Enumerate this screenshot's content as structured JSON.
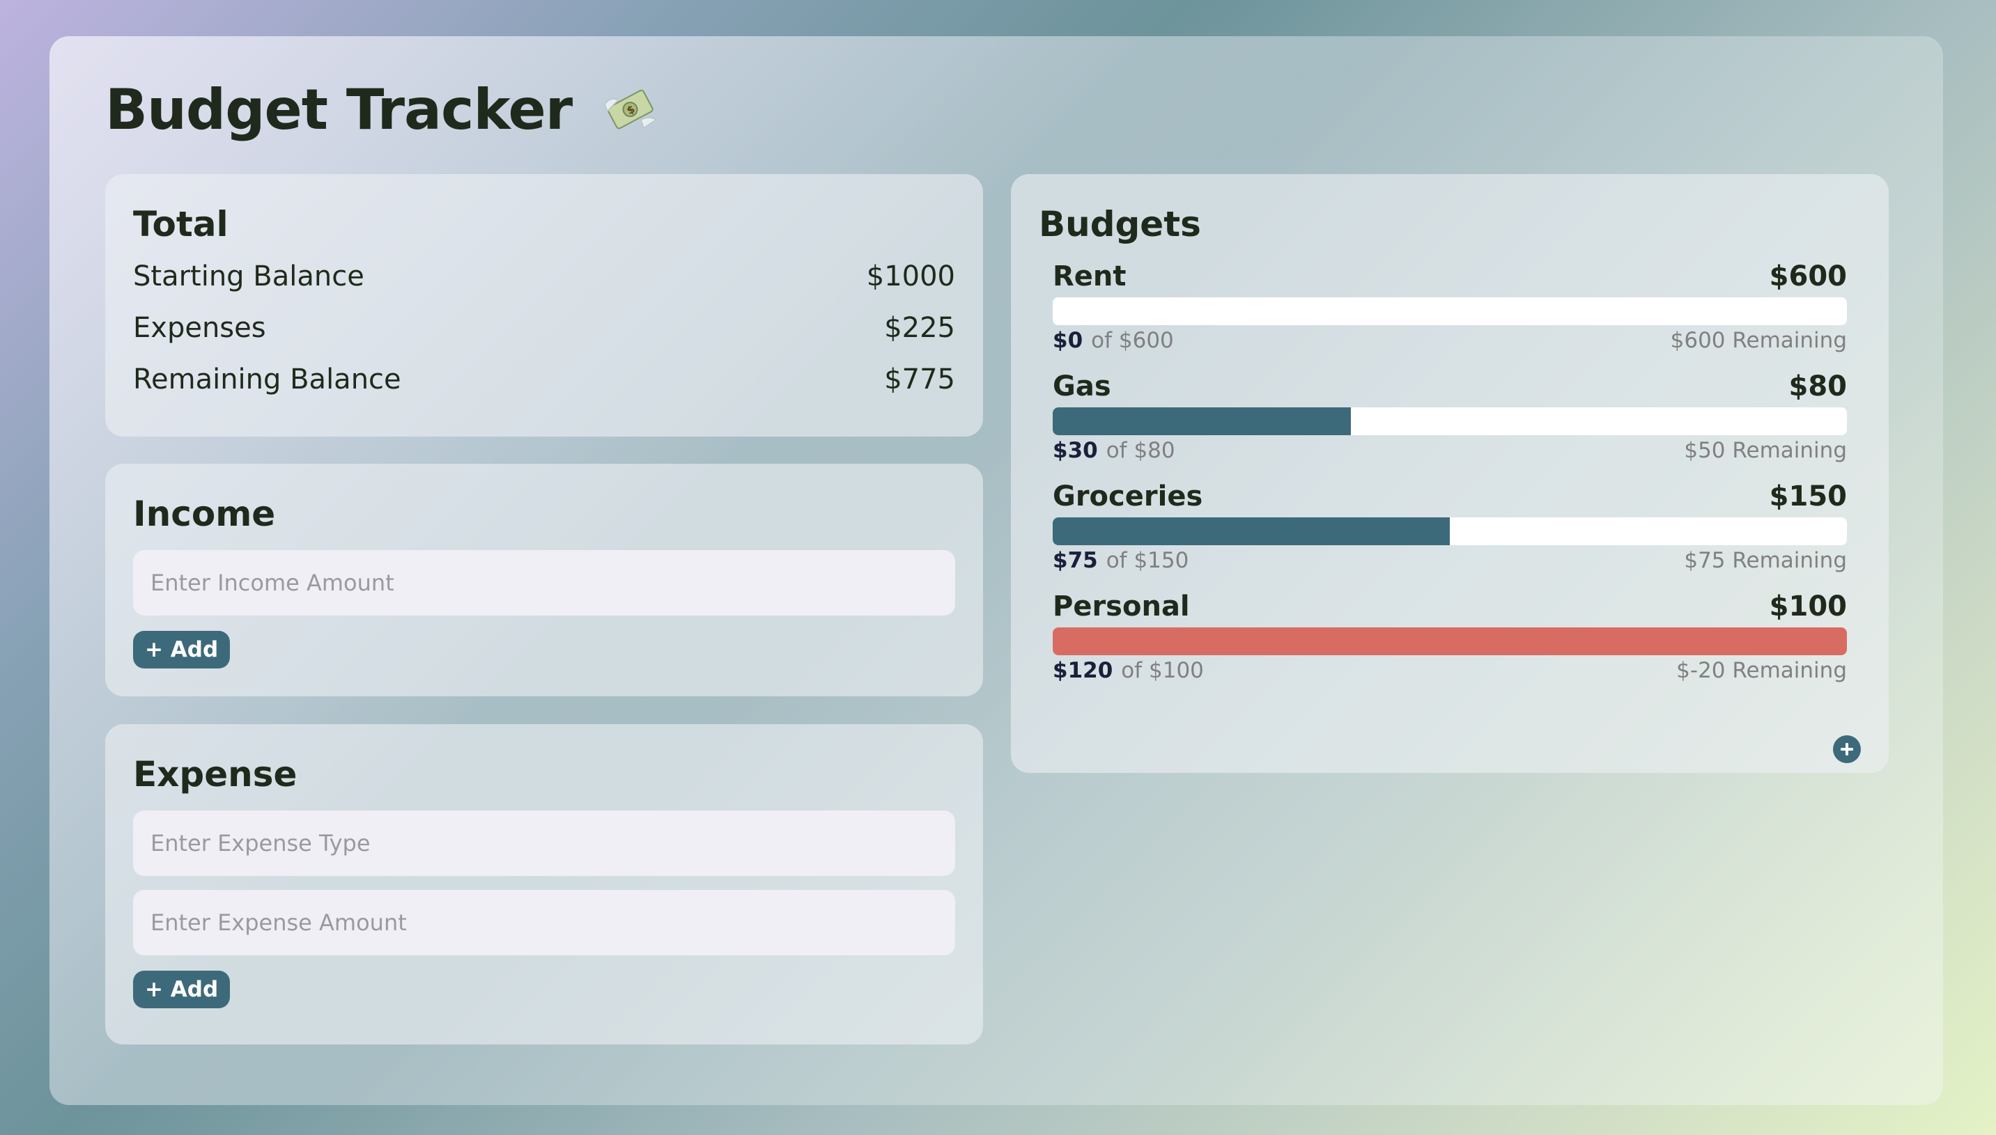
{
  "app": {
    "title": "Budget Tracker",
    "title_icon": "money-with-wings-icon"
  },
  "total": {
    "heading": "Total",
    "rows": [
      {
        "label": "Starting Balance",
        "value": "$1000"
      },
      {
        "label": "Expenses",
        "value": "$225"
      },
      {
        "label": "Remaining Balance",
        "value": "$775"
      }
    ]
  },
  "income": {
    "heading": "Income",
    "amount_placeholder": "Enter Income Amount",
    "amount_value": "",
    "add_label": "+ Add"
  },
  "expense": {
    "heading": "Expense",
    "type_placeholder": "Enter Expense Type",
    "type_value": "",
    "amount_placeholder": "Enter Expense Amount",
    "amount_value": "",
    "add_label": "+ Add"
  },
  "budgets": {
    "heading": "Budgets",
    "add_icon": "plus-circle-icon",
    "items": [
      {
        "name": "Rent",
        "limit": "$600",
        "spent": "$0",
        "of_text": "of $600",
        "remaining": "$600 Remaining",
        "progress": 0,
        "over_budget": false
      },
      {
        "name": "Gas",
        "limit": "$80",
        "spent": "$30",
        "of_text": "of $80",
        "remaining": "$50 Remaining",
        "progress": 0.375,
        "over_budget": false
      },
      {
        "name": "Groceries",
        "limit": "$150",
        "spent": "$75",
        "of_text": "of $150",
        "remaining": "$75 Remaining",
        "progress": 0.5,
        "over_budget": false
      },
      {
        "name": "Personal",
        "limit": "$100",
        "spent": "$120",
        "of_text": "of $100",
        "remaining": "$-20 Remaining",
        "progress": 1,
        "over_budget": true
      }
    ]
  },
  "colors": {
    "accent": "#3d6a7a",
    "over_budget": "#d96c62",
    "text": "#1f2a1c",
    "muted": "#808080"
  }
}
